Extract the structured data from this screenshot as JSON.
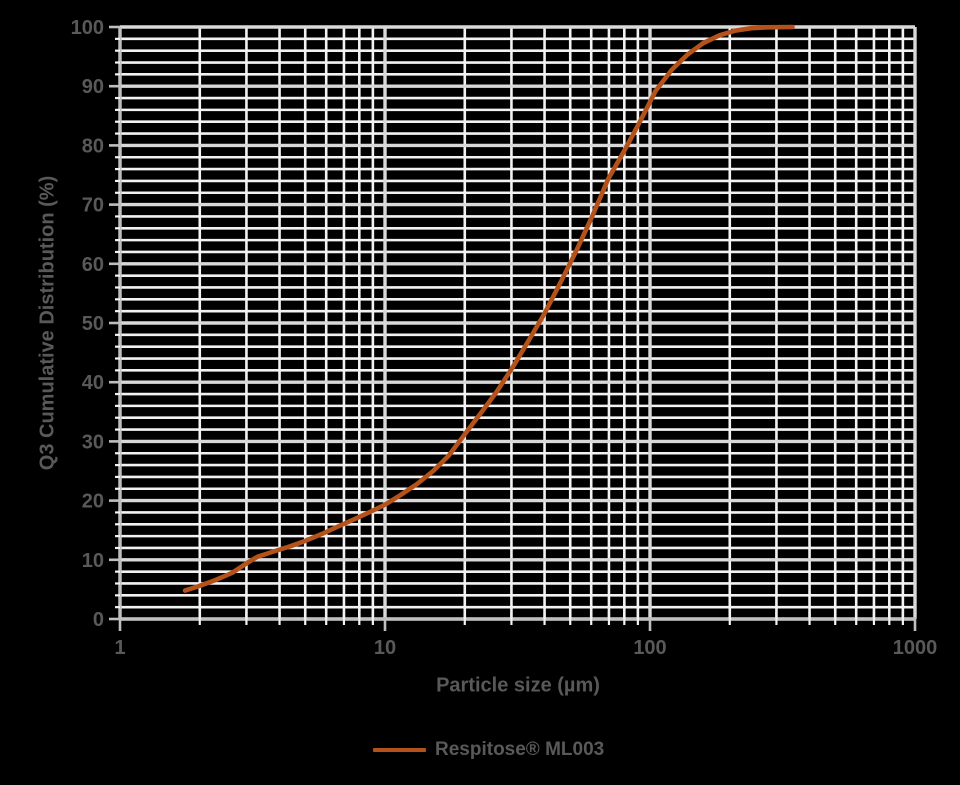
{
  "chart_data": {
    "type": "line",
    "title": "",
    "xlabel": "Particle size (µm)",
    "ylabel": "Q3 Cumulative Distribution (%)",
    "x_scale": "log",
    "xlim": [
      1,
      1000
    ],
    "x_major_ticks": [
      1,
      10,
      100,
      1000
    ],
    "x_major_tick_labels": [
      "1",
      "10",
      "100",
      "1000"
    ],
    "ylim": [
      0,
      100
    ],
    "y_major_step": 10,
    "y_minor_step": 2,
    "y_major_tick_labels": [
      "0",
      "10",
      "20",
      "30",
      "40",
      "50",
      "60",
      "70",
      "80",
      "90",
      "100"
    ],
    "grid": {
      "major": true,
      "minor": true
    },
    "legend": {
      "position": "bottom-center",
      "entries": [
        {
          "label": "Respitose® ML003",
          "color": "#B5521A",
          "marker": "line"
        }
      ]
    },
    "series": [
      {
        "name": "Respitose® ML003",
        "color": "#B5521A",
        "points": [
          [
            1.76,
            4.8
          ],
          [
            2.0,
            5.6
          ],
          [
            2.3,
            6.6
          ],
          [
            2.65,
            7.8
          ],
          [
            3.0,
            9.4
          ],
          [
            3.3,
            10.5
          ],
          [
            3.8,
            11.4
          ],
          [
            4.4,
            12.3
          ],
          [
            5.0,
            13.2
          ],
          [
            5.8,
            14.4
          ],
          [
            6.7,
            15.7
          ],
          [
            7.7,
            16.9
          ],
          [
            8.8,
            18.1
          ],
          [
            10.0,
            19.3
          ],
          [
            11.5,
            21.0
          ],
          [
            13.2,
            22.8
          ],
          [
            15.2,
            25.0
          ],
          [
            17.4,
            27.6
          ],
          [
            20.0,
            31.2
          ],
          [
            23.0,
            34.8
          ],
          [
            26.4,
            38.4
          ],
          [
            30.3,
            42.5
          ],
          [
            34.8,
            47.0
          ],
          [
            40.0,
            51.6
          ],
          [
            45.9,
            56.8
          ],
          [
            52.7,
            62.2
          ],
          [
            60.5,
            68.0
          ],
          [
            69.5,
            74.3
          ],
          [
            79.8,
            79.0
          ],
          [
            91.6,
            84.0
          ],
          [
            105,
            89.2
          ],
          [
            121,
            92.8
          ],
          [
            139,
            95.4
          ],
          [
            159,
            97.3
          ],
          [
            183,
            98.6
          ],
          [
            210,
            99.4
          ],
          [
            241,
            99.8
          ],
          [
            277,
            99.95
          ],
          [
            345,
            100
          ]
        ]
      }
    ]
  },
  "colors": {
    "background": "#000000",
    "text": "#595959",
    "grid_minor": "#F2F2F2",
    "grid_major": "#D9D9D9",
    "axis_line": "#BFBFBF",
    "series": "#B5521A"
  }
}
